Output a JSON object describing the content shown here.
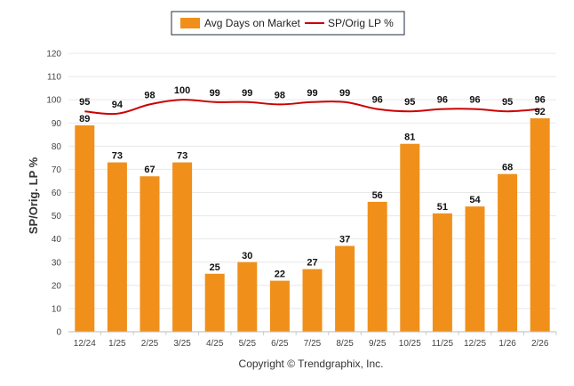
{
  "chart_data": {
    "type": "bar",
    "categories": [
      "12/24",
      "1/25",
      "2/25",
      "3/25",
      "4/25",
      "5/25",
      "6/25",
      "7/25",
      "8/25",
      "9/25",
      "10/25",
      "11/25",
      "12/25",
      "1/26",
      "2/26"
    ],
    "series": [
      {
        "name": "Avg Days on Market",
        "type": "bar",
        "color": "#f0901a",
        "values": [
          89,
          73,
          67,
          73,
          25,
          30,
          22,
          27,
          37,
          56,
          81,
          51,
          54,
          68,
          92
        ]
      },
      {
        "name": "SP/Orig LP %",
        "type": "line",
        "color": "#cc0000",
        "values": [
          95,
          94,
          98,
          100,
          99,
          99,
          98,
          99,
          99,
          96,
          95,
          96,
          96,
          95,
          96
        ]
      }
    ],
    "title": "",
    "xlabel": "",
    "ylabel": "SP/Orig. LP %",
    "ylim": [
      0,
      120
    ],
    "yticks": [
      0,
      10,
      20,
      30,
      40,
      50,
      60,
      70,
      80,
      90,
      100,
      110,
      120
    ],
    "legend": "top-center",
    "grid": true
  },
  "legend": {
    "bar_label": "Avg Days on Market",
    "line_label": "SP/Orig LP %"
  },
  "axis": {
    "ylabel": "SP/Orig. LP %"
  },
  "footer": {
    "credit": "Copyright © Trendgraphix, Inc."
  }
}
